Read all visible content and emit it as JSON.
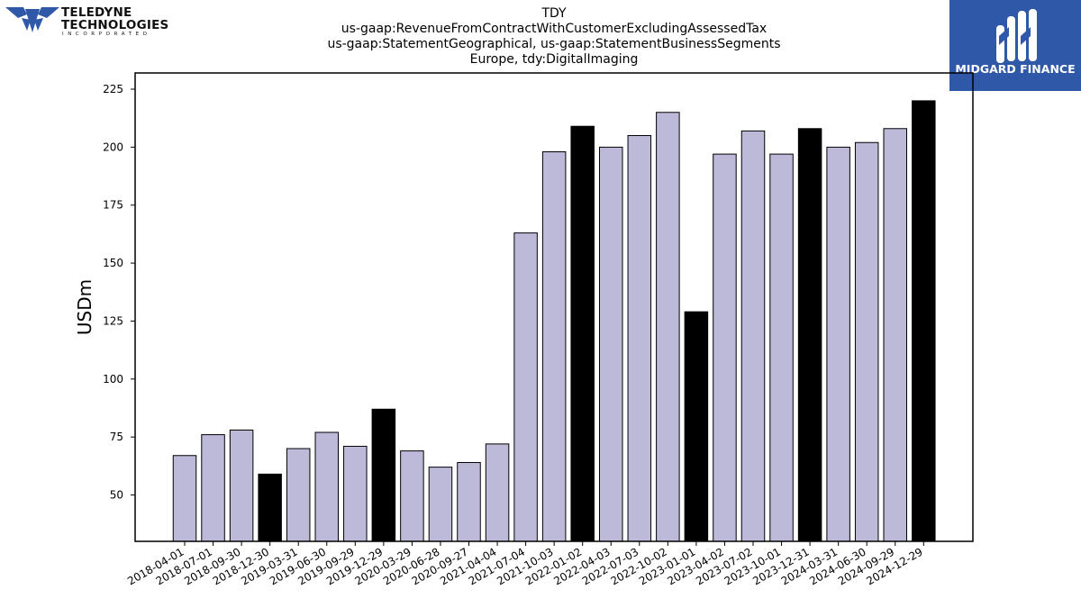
{
  "chart_data": {
    "type": "bar",
    "title_lines": [
      "TDY",
      "us-gaap:RevenueFromContractWithCustomerExcludingAssessedTax",
      "us-gaap:StatementGeographical, us-gaap:StatementBusinessSegments",
      "Europe, tdy:DigitalImaging"
    ],
    "xlabel": "",
    "ylabel": "USDm",
    "ylim": [
      30,
      232
    ],
    "yticks": [
      50,
      75,
      100,
      125,
      150,
      175,
      200,
      225
    ],
    "categories": [
      "2018-04-01",
      "2018-07-01",
      "2018-09-30",
      "2018-12-30",
      "2019-03-31",
      "2019-06-30",
      "2019-09-29",
      "2019-12-29",
      "2020-03-29",
      "2020-06-28",
      "2020-09-27",
      "2021-04-04",
      "2021-07-04",
      "2021-10-03",
      "2022-01-02",
      "2022-04-03",
      "2022-07-03",
      "2022-10-02",
      "2023-01-01",
      "2023-04-02",
      "2023-07-02",
      "2023-10-01",
      "2023-12-31",
      "2024-03-31",
      "2024-06-30",
      "2024-09-29",
      "2024-12-29"
    ],
    "values": [
      67,
      76,
      78,
      59,
      70,
      77,
      71,
      87,
      69,
      62,
      64,
      72,
      163,
      198,
      209,
      200,
      205,
      215,
      129,
      197,
      207,
      197,
      208,
      200,
      202,
      208,
      220
    ],
    "highlighted": [
      false,
      false,
      false,
      true,
      false,
      false,
      false,
      true,
      false,
      false,
      false,
      false,
      false,
      false,
      true,
      false,
      false,
      false,
      true,
      false,
      false,
      false,
      true,
      false,
      false,
      false,
      true
    ],
    "grid": false,
    "colors": {
      "bar": "#bdb9d9",
      "highlight": "#000000",
      "edge": "#000000"
    }
  },
  "logos": {
    "left": {
      "line1": "TELEDYNE",
      "line2": "TECHNOLOGIES",
      "line3": "INCORPORATED",
      "icon": "teledyne-chevron-icon",
      "color": "#2f58a8"
    },
    "right": {
      "name": "MIDGARD FINANCE",
      "icon": "midgard-monogram-icon",
      "background": "#2f58a8"
    }
  }
}
